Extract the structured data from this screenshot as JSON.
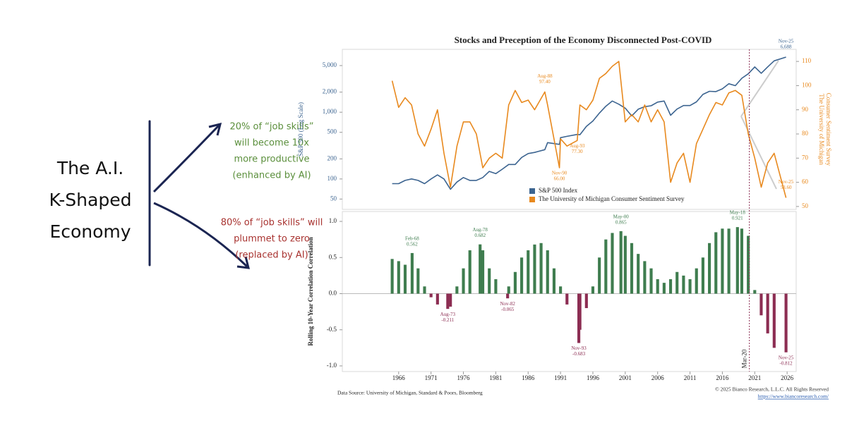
{
  "diagram": {
    "title": [
      "The A.I.",
      "K-Shaped",
      "Economy"
    ],
    "up": {
      "lines": [
        "20% of “job skills”",
        "will become 10x",
        "more productive",
        "(enhanced by AI)"
      ],
      "color": "#5b8f3c"
    },
    "down": {
      "lines": [
        "80% of “job skills” will",
        "plummet to zero",
        "(replaced by AI)"
      ],
      "color": "#a8322f"
    }
  },
  "title": "Stocks and Preception of the Economy Disconnected Post-COVID",
  "source": "Data Source: University of Michigan, Standard & Poors, Bloomberg",
  "copyright": "© 2025 Bianco Research, L.L.C. All Rights Reserved",
  "url": "https://www.biancoresearch.com/",
  "chart_data": [
    {
      "type": "line",
      "log_scale": true,
      "legend": "lower center",
      "ylabel": "S&P 500 (Log Scale)",
      "y2label": [
        "The University of Michigan",
        "Consumer Sentiment Survey"
      ],
      "xlim": [
        1957.3,
        2027.4
      ],
      "ylim": [
        35,
        8750
      ],
      "yticks": [
        50,
        100,
        200,
        500,
        {
          "value": 1000,
          "label": "1,000"
        },
        {
          "value": 2000,
          "label": "2,000"
        },
        {
          "value": 5000,
          "label": "5,000"
        }
      ],
      "y2lim": [
        48.8,
        115
      ],
      "y2ticks": [
        50,
        60,
        70,
        80,
        90,
        100,
        110
      ],
      "x": [
        1965,
        1966,
        1967,
        1968,
        1969,
        1970,
        1971,
        1972,
        1973,
        1974,
        1975,
        1976,
        1977,
        1978,
        1979,
        1980,
        1981,
        1982,
        1983,
        1984,
        1985,
        1986,
        1987,
        1988.58,
        1989,
        1990.83,
        1991,
        1992,
        1993.58,
        1994,
        1995,
        1996,
        1997,
        1998,
        1999,
        2000,
        2001,
        2002,
        2003,
        2004,
        2005,
        2006,
        2007,
        2008,
        2009,
        2010,
        2011,
        2012,
        2013,
        2014,
        2015,
        2016,
        2017,
        2018,
        2019,
        2020,
        2021,
        2022,
        2023,
        2024,
        2025.83
      ],
      "series": [
        {
          "name": "S&P 500 Index",
          "color": "#3c6490",
          "values": [
            85,
            85,
            95,
            100,
            95,
            85,
            100,
            115,
            100,
            70,
            90,
            105,
            95,
            95,
            105,
            130,
            120,
            140,
            165,
            165,
            210,
            240,
            250,
            275,
            350,
            330,
            415,
            435,
            465,
            460,
            615,
            740,
            970,
            1230,
            1470,
            1320,
            1150,
            880,
            1110,
            1210,
            1250,
            1420,
            1470,
            900,
            1115,
            1260,
            1260,
            1430,
            1850,
            2060,
            2040,
            2240,
            2670,
            2500,
            3230,
            3760,
            4770,
            3840,
            4770,
            5880,
            6688
          ]
        },
        {
          "name": "The University of Michigan Consumer Sentiment Survey",
          "color": "#e8891e",
          "axis": "y2",
          "values": [
            102,
            91,
            95,
            92,
            80,
            75,
            82,
            90,
            72,
            58,
            75,
            85,
            85,
            80,
            66,
            70,
            72,
            70,
            92,
            98,
            93,
            94,
            90,
            97.4,
            92,
            66,
            78,
            75,
            77.3,
            92,
            90,
            94,
            103,
            105,
            108,
            110,
            85,
            88,
            85,
            92,
            85,
            90,
            85,
            60,
            68,
            72,
            60,
            76,
            82,
            88,
            93,
            92,
            97,
            98,
            96,
            80,
            70,
            58,
            68,
            72,
            53.6
          ]
        }
      ],
      "annotations": [
        {
          "date": "Aug-88",
          "x": 1988.58,
          "y": 97.4,
          "value_label": "97.40",
          "series": 1,
          "position": "above"
        },
        {
          "date": "Aug-93",
          "x": 1993.58,
          "y": 77.3,
          "value_label": "77.30",
          "series": 1,
          "position": "below"
        },
        {
          "date": "Nov-90",
          "x": 1990.83,
          "y": 66,
          "value_label": "66.00",
          "series": 1,
          "position": "below"
        },
        {
          "date": "Nov-25",
          "x": 2025.83,
          "y": 53.6,
          "value_label": "53.60",
          "series": 1,
          "position": "above"
        },
        {
          "date": "Nov-25",
          "x": 2025.83,
          "y": 6688,
          "value_label": "6,688",
          "series": 0,
          "position": "above"
        }
      ]
    },
    {
      "type": "bar",
      "ylabel": "Rolling 10-Year Correlation Correlation",
      "xlim": [
        1957.3,
        2027.4
      ],
      "xticks": [
        1966,
        1971,
        1976,
        1981,
        1986,
        1991,
        1996,
        2001,
        2006,
        2011,
        2016,
        2021,
        2026
      ],
      "ylim": [
        -1.078,
        1.137
      ],
      "yticks": [
        {
          "value": -1,
          "label": "-1.0"
        },
        -0.5,
        {
          "value": 0,
          "label": "0.0"
        },
        0.5,
        {
          "value": 1,
          "label": "1.0"
        }
      ],
      "colors": {
        "positive": "#3f7d4f",
        "negative": "#8c2d52"
      },
      "vline": {
        "x": 2020.17,
        "label": "Mar-20"
      },
      "x": [
        1965,
        1966,
        1967,
        1968.08,
        1969,
        1970,
        1971,
        1972,
        1973.58,
        1974,
        1975,
        1976,
        1977,
        1978.58,
        1979,
        1980,
        1981,
        1982.83,
        1983,
        1984,
        1985,
        1986,
        1987,
        1988,
        1989,
        1990,
        1991,
        1992,
        1993.83,
        1994,
        1995,
        1996,
        1997,
        1998,
        1999,
        2000.33,
        2001,
        2002,
        2003,
        2004,
        2005,
        2006,
        2007,
        2008,
        2009,
        2010,
        2011,
        2012,
        2013,
        2014,
        2015,
        2016,
        2017,
        2018.33,
        2019,
        2020,
        2021,
        2022,
        2023,
        2024,
        2025.83
      ],
      "values": [
        0.48,
        0.45,
        0.4,
        0.562,
        0.35,
        0.1,
        -0.05,
        -0.15,
        -0.211,
        -0.18,
        0.1,
        0.35,
        0.6,
        0.682,
        0.6,
        0.35,
        0.2,
        -0.065,
        0.1,
        0.3,
        0.5,
        0.6,
        0.68,
        0.7,
        0.6,
        0.35,
        0.1,
        -0.15,
        -0.683,
        -0.5,
        -0.2,
        0.1,
        0.5,
        0.75,
        0.84,
        0.865,
        0.8,
        0.7,
        0.55,
        0.45,
        0.35,
        0.2,
        0.15,
        0.2,
        0.3,
        0.25,
        0.2,
        0.35,
        0.5,
        0.7,
        0.85,
        0.9,
        0.9,
        0.921,
        0.9,
        0.8,
        0.05,
        -0.3,
        -0.55,
        -0.75,
        -0.812
      ],
      "annotations": [
        {
          "date": "Feb-68",
          "x": 1968.08,
          "value": 0.562
        },
        {
          "date": "Aug-73",
          "x": 1973.58,
          "value": -0.211
        },
        {
          "date": "Aug-78",
          "x": 1978.58,
          "value": 0.682
        },
        {
          "date": "Nov-82",
          "x": 1982.83,
          "value": -0.065
        },
        {
          "date": "Nov-93",
          "x": 1993.83,
          "value": -0.683
        },
        {
          "date": "May-00",
          "x": 2000.33,
          "value": 0.865
        },
        {
          "date": "May-18",
          "x": 2018.33,
          "value": 0.921
        },
        {
          "date": "Nov-25",
          "x": 2025.83,
          "value": -0.812
        }
      ]
    }
  ]
}
